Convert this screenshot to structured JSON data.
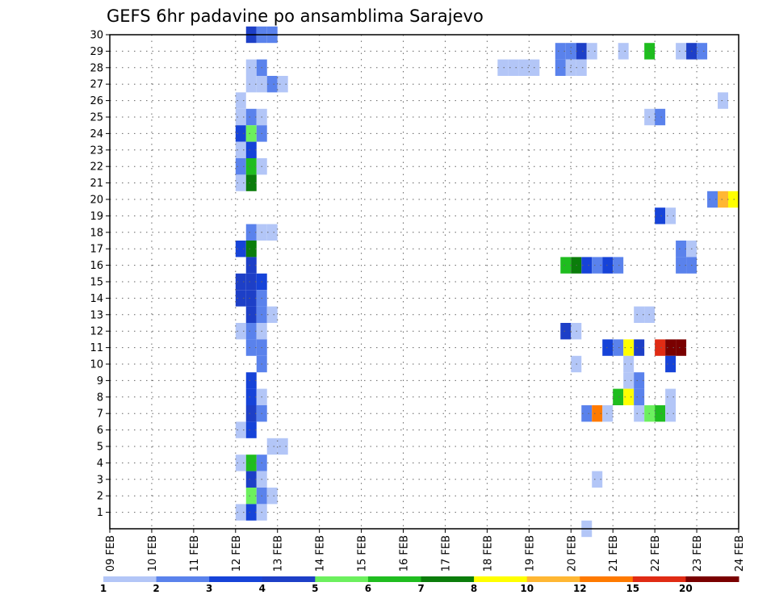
{
  "chart_data": {
    "type": "heatmap",
    "title": "GEFS 6hr padavine po ansamblima Sarajevo",
    "x_tick_labels": [
      "09 FEB",
      "10 FEB",
      "11 FEB",
      "12 FEB",
      "13 FEB",
      "14 FEB",
      "15 FEB",
      "16 FEB",
      "17 FEB",
      "18 FEB",
      "19 FEB",
      "20 FEB",
      "21 FEB",
      "22 FEB",
      "23 FEB",
      "24 FEB"
    ],
    "xlim_days": [
      9,
      24
    ],
    "y_tick_labels": [
      "1",
      "2",
      "3",
      "4",
      "5",
      "6",
      "7",
      "8",
      "9",
      "10",
      "11",
      "12",
      "13",
      "14",
      "15",
      "16",
      "17",
      "18",
      "19",
      "20",
      "21",
      "22",
      "23",
      "24",
      "25",
      "26",
      "27",
      "28",
      "29",
      "30"
    ],
    "ylim": [
      0,
      30
    ],
    "grid": true,
    "legend_position": "bottom",
    "legend": {
      "boundaries": [
        1,
        2,
        3,
        4,
        5,
        6,
        7,
        8,
        10,
        12,
        15,
        20
      ],
      "labels": [
        "1",
        "2",
        "3",
        "4",
        "5",
        "6",
        "7",
        "8",
        "10",
        "12",
        "15",
        "20"
      ],
      "colors": [
        "#b3c6f7",
        "#5a82ec",
        "#1643d8",
        "#1d3fc7",
        "#6cf05e",
        "#1fbd1f",
        "#0b7d0b",
        "#ffff00",
        "#ffb733",
        "#ff7a00",
        "#e02b14",
        "#7a0000"
      ]
    },
    "cells": [
      {
        "member": 30,
        "day": 12.375,
        "value": 4
      },
      {
        "member": 30,
        "day": 12.625,
        "value": 2
      },
      {
        "member": 30,
        "day": 12.875,
        "value": 2
      },
      {
        "member": 29,
        "day": 19.75,
        "value": 2
      },
      {
        "member": 29,
        "day": 20.0,
        "value": 2
      },
      {
        "member": 29,
        "day": 20.25,
        "value": 4
      },
      {
        "member": 29,
        "day": 20.5,
        "value": 1
      },
      {
        "member": 29,
        "day": 21.25,
        "value": 1
      },
      {
        "member": 29,
        "day": 21.875,
        "value": 6
      },
      {
        "member": 29,
        "day": 22.625,
        "value": 1
      },
      {
        "member": 29,
        "day": 22.875,
        "value": 4
      },
      {
        "member": 29,
        "day": 23.125,
        "value": 2
      },
      {
        "member": 28,
        "day": 12.375,
        "value": 1
      },
      {
        "member": 28,
        "day": 12.625,
        "value": 2
      },
      {
        "member": 28,
        "day": 18.375,
        "value": 1
      },
      {
        "member": 28,
        "day": 18.625,
        "value": 1
      },
      {
        "member": 28,
        "day": 18.875,
        "value": 1
      },
      {
        "member": 28,
        "day": 19.125,
        "value": 1
      },
      {
        "member": 28,
        "day": 19.75,
        "value": 2
      },
      {
        "member": 28,
        "day": 20.0,
        "value": 1
      },
      {
        "member": 28,
        "day": 20.25,
        "value": 1
      },
      {
        "member": 27,
        "day": 12.375,
        "value": 1
      },
      {
        "member": 27,
        "day": 12.625,
        "value": 1
      },
      {
        "member": 27,
        "day": 12.875,
        "value": 2
      },
      {
        "member": 27,
        "day": 13.125,
        "value": 1
      },
      {
        "member": 26,
        "day": 12.125,
        "value": 1
      },
      {
        "member": 26,
        "day": 23.625,
        "value": 1
      },
      {
        "member": 25,
        "day": 12.125,
        "value": 1
      },
      {
        "member": 25,
        "day": 12.375,
        "value": 2
      },
      {
        "member": 25,
        "day": 12.625,
        "value": 1
      },
      {
        "member": 25,
        "day": 21.875,
        "value": 1
      },
      {
        "member": 25,
        "day": 22.125,
        "value": 2
      },
      {
        "member": 24,
        "day": 12.125,
        "value": 3
      },
      {
        "member": 24,
        "day": 12.375,
        "value": 5
      },
      {
        "member": 24,
        "day": 12.625,
        "value": 2
      },
      {
        "member": 23,
        "day": 12.125,
        "value": 1
      },
      {
        "member": 23,
        "day": 12.375,
        "value": 3
      },
      {
        "member": 22,
        "day": 12.125,
        "value": 2
      },
      {
        "member": 22,
        "day": 12.375,
        "value": 6
      },
      {
        "member": 22,
        "day": 12.625,
        "value": 1
      },
      {
        "member": 21,
        "day": 12.125,
        "value": 1
      },
      {
        "member": 21,
        "day": 12.375,
        "value": 7
      },
      {
        "member": 20,
        "day": 23.375,
        "value": 2
      },
      {
        "member": 20,
        "day": 23.625,
        "value": 10
      },
      {
        "member": 20,
        "day": 23.875,
        "value": 8
      },
      {
        "member": 19,
        "day": 22.125,
        "value": 3
      },
      {
        "member": 19,
        "day": 22.375,
        "value": 1
      },
      {
        "member": 18,
        "day": 12.375,
        "value": 2
      },
      {
        "member": 18,
        "day": 12.625,
        "value": 1
      },
      {
        "member": 18,
        "day": 12.875,
        "value": 1
      },
      {
        "member": 17,
        "day": 12.125,
        "value": 3
      },
      {
        "member": 17,
        "day": 12.375,
        "value": 7
      },
      {
        "member": 17,
        "day": 22.625,
        "value": 2
      },
      {
        "member": 17,
        "day": 22.875,
        "value": 1
      },
      {
        "member": 16,
        "day": 12.375,
        "value": 4
      },
      {
        "member": 16,
        "day": 19.875,
        "value": 6
      },
      {
        "member": 16,
        "day": 20.125,
        "value": 7
      },
      {
        "member": 16,
        "day": 20.375,
        "value": 3
      },
      {
        "member": 16,
        "day": 20.625,
        "value": 2
      },
      {
        "member": 16,
        "day": 20.875,
        "value": 3
      },
      {
        "member": 16,
        "day": 21.125,
        "value": 2
      },
      {
        "member": 16,
        "day": 22.625,
        "value": 2
      },
      {
        "member": 16,
        "day": 22.875,
        "value": 2
      },
      {
        "member": 15,
        "day": 12.125,
        "value": 4
      },
      {
        "member": 15,
        "day": 12.375,
        "value": 4
      },
      {
        "member": 15,
        "day": 12.625,
        "value": 3
      },
      {
        "member": 14,
        "day": 12.125,
        "value": 4
      },
      {
        "member": 14,
        "day": 12.375,
        "value": 4
      },
      {
        "member": 14,
        "day": 12.625,
        "value": 2
      },
      {
        "member": 13,
        "day": 12.375,
        "value": 4
      },
      {
        "member": 13,
        "day": 12.625,
        "value": 2
      },
      {
        "member": 13,
        "day": 12.875,
        "value": 1
      },
      {
        "member": 13,
        "day": 21.625,
        "value": 1
      },
      {
        "member": 13,
        "day": 21.875,
        "value": 1
      },
      {
        "member": 12,
        "day": 12.125,
        "value": 1
      },
      {
        "member": 12,
        "day": 12.375,
        "value": 2
      },
      {
        "member": 12,
        "day": 12.625,
        "value": 1
      },
      {
        "member": 12,
        "day": 19.875,
        "value": 4
      },
      {
        "member": 12,
        "day": 20.125,
        "value": 1
      },
      {
        "member": 11,
        "day": 12.375,
        "value": 2
      },
      {
        "member": 11,
        "day": 12.625,
        "value": 2
      },
      {
        "member": 11,
        "day": 20.875,
        "value": 3
      },
      {
        "member": 11,
        "day": 21.125,
        "value": 2
      },
      {
        "member": 11,
        "day": 21.375,
        "value": 8
      },
      {
        "member": 11,
        "day": 21.625,
        "value": 4
      },
      {
        "member": 11,
        "day": 22.125,
        "value": 15
      },
      {
        "member": 11,
        "day": 22.375,
        "value": 20
      },
      {
        "member": 11,
        "day": 22.625,
        "value": 20
      },
      {
        "member": 10,
        "day": 12.625,
        "value": 2
      },
      {
        "member": 10,
        "day": 20.125,
        "value": 1
      },
      {
        "member": 10,
        "day": 21.375,
        "value": 1
      },
      {
        "member": 10,
        "day": 22.375,
        "value": 3
      },
      {
        "member": 9,
        "day": 12.375,
        "value": 3
      },
      {
        "member": 9,
        "day": 21.375,
        "value": 1
      },
      {
        "member": 9,
        "day": 21.625,
        "value": 2
      },
      {
        "member": 8,
        "day": 12.375,
        "value": 3
      },
      {
        "member": 8,
        "day": 12.625,
        "value": 1
      },
      {
        "member": 8,
        "day": 21.125,
        "value": 6
      },
      {
        "member": 8,
        "day": 21.375,
        "value": 8
      },
      {
        "member": 8,
        "day": 21.625,
        "value": 2
      },
      {
        "member": 8,
        "day": 22.375,
        "value": 1
      },
      {
        "member": 7,
        "day": 12.375,
        "value": 4
      },
      {
        "member": 7,
        "day": 12.625,
        "value": 2
      },
      {
        "member": 7,
        "day": 20.375,
        "value": 2
      },
      {
        "member": 7,
        "day": 20.625,
        "value": 12
      },
      {
        "member": 7,
        "day": 20.875,
        "value": 1
      },
      {
        "member": 7,
        "day": 21.625,
        "value": 1
      },
      {
        "member": 7,
        "day": 21.875,
        "value": 5
      },
      {
        "member": 7,
        "day": 22.125,
        "value": 6
      },
      {
        "member": 7,
        "day": 22.375,
        "value": 1
      },
      {
        "member": 6,
        "day": 12.125,
        "value": 1
      },
      {
        "member": 6,
        "day": 12.375,
        "value": 3
      },
      {
        "member": 5,
        "day": 12.875,
        "value": 1
      },
      {
        "member": 5,
        "day": 13.125,
        "value": 1
      },
      {
        "member": 4,
        "day": 12.125,
        "value": 1
      },
      {
        "member": 4,
        "day": 12.375,
        "value": 6
      },
      {
        "member": 4,
        "day": 12.625,
        "value": 2
      },
      {
        "member": 3,
        "day": 12.375,
        "value": 4
      },
      {
        "member": 3,
        "day": 12.625,
        "value": 1
      },
      {
        "member": 3,
        "day": 20.625,
        "value": 1
      },
      {
        "member": 2,
        "day": 12.375,
        "value": 5
      },
      {
        "member": 2,
        "day": 12.625,
        "value": 2
      },
      {
        "member": 2,
        "day": 12.875,
        "value": 1
      },
      {
        "member": 1,
        "day": 12.125,
        "value": 1
      },
      {
        "member": 1,
        "day": 12.375,
        "value": 3
      },
      {
        "member": 1,
        "day": 12.625,
        "value": 1
      },
      {
        "member": 0,
        "day": 20.375,
        "value": 1
      }
    ]
  }
}
